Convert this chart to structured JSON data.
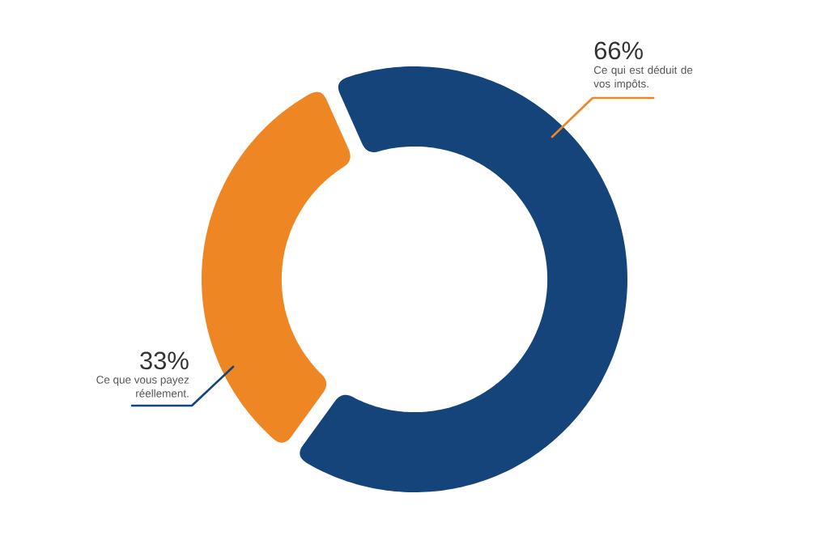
{
  "chart_data": {
    "type": "donut",
    "categories": [
      "Ce qui est déduit de vos impôts.",
      "Ce que vous payez réellement."
    ],
    "values": [
      66,
      33
    ],
    "colors": [
      "#14447a",
      "#ee8623"
    ],
    "value_labels": [
      "66%",
      "33%"
    ]
  }
}
